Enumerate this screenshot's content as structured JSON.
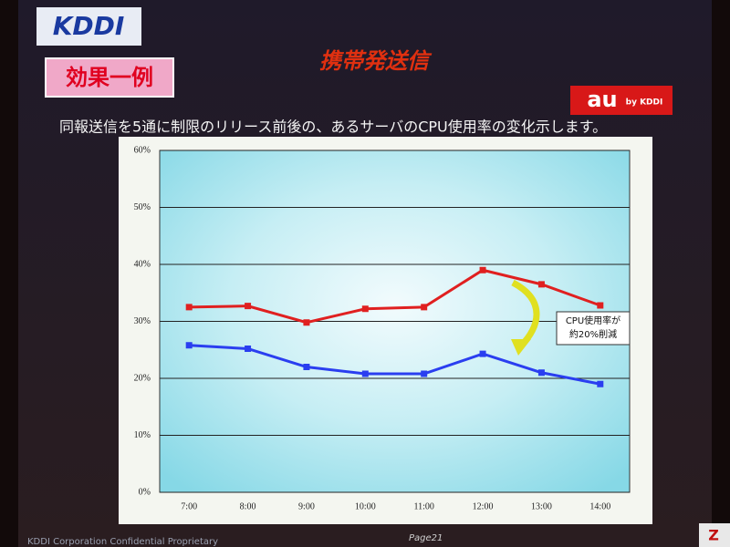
{
  "logo": "KDDI",
  "title": "携帯発送信",
  "badge": "効果一例",
  "brand": {
    "mark": "au",
    "by": "by KDDI"
  },
  "subtitle": "同報送信を5通に制限のリリース前後の、あるサーバのCPU使用率の変化示します。",
  "footer": {
    "left": "KDDI Corporation  Confidential Proprietary",
    "page": "Page21",
    "corner": "Z"
  },
  "chart_data": {
    "type": "line",
    "categories": [
      "7:00",
      "8:00",
      "9:00",
      "10:00",
      "11:00",
      "12:00",
      "13:00",
      "14:00"
    ],
    "series": [
      {
        "color": "#e02020",
        "values": [
          32.5,
          32.7,
          29.8,
          32.2,
          32.5,
          39,
          36.5,
          32.8
        ]
      },
      {
        "color": "#2a3ef0",
        "values": [
          25.8,
          25.2,
          22,
          20.8,
          20.8,
          24.3,
          21,
          19
        ]
      }
    ],
    "ylim": [
      0,
      60
    ],
    "yticks": [
      {
        "value": 0,
        "label": "0%"
      },
      {
        "value": 10,
        "label": "10%"
      },
      {
        "value": 20,
        "label": "20%"
      },
      {
        "value": 30,
        "label": "30%"
      },
      {
        "value": 40,
        "label": "40%"
      },
      {
        "value": 50,
        "label": "50%"
      },
      {
        "value": 60,
        "label": "60%"
      }
    ],
    "grid": true,
    "annotation": [
      "CPU使用率が",
      "約20%削減"
    ]
  }
}
